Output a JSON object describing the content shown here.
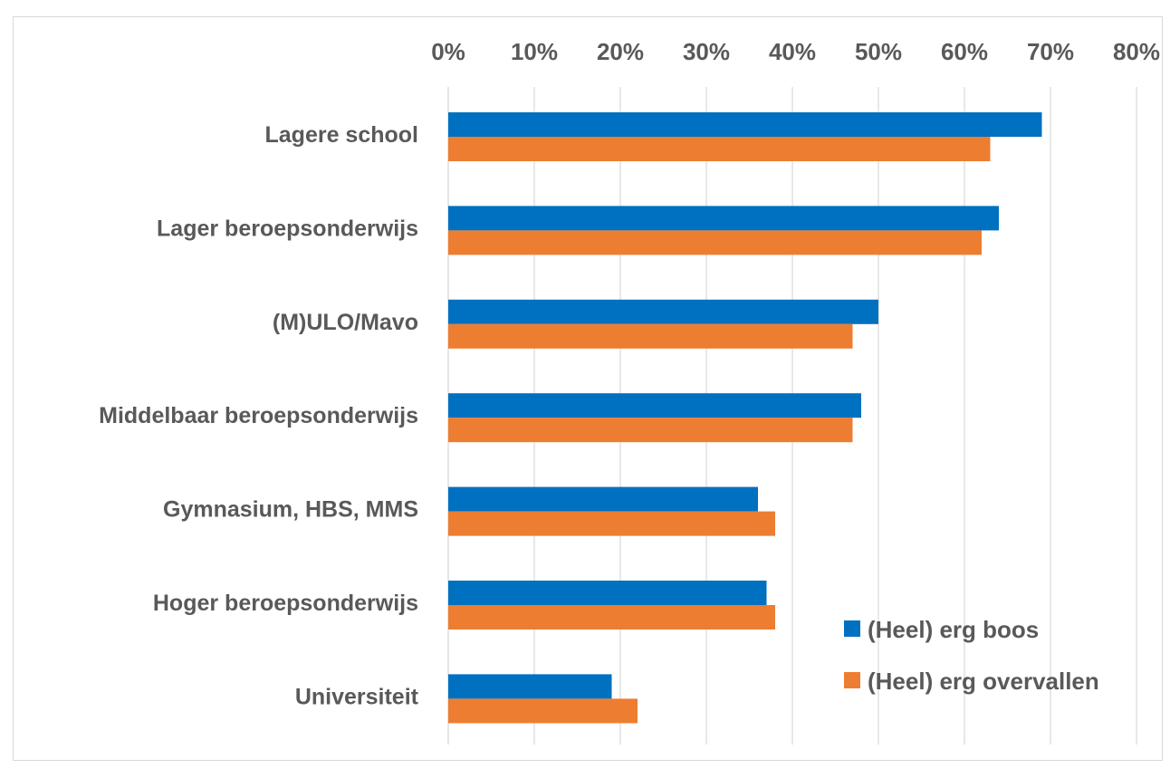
{
  "chart_data": {
    "type": "bar",
    "orientation": "horizontal",
    "title": "",
    "xlabel": "",
    "ylabel": "",
    "categories": [
      "Lagere school",
      "Lager beroepsonderwijs",
      "(M)ULO/Mavo",
      "Middelbaar beroepsonderwijs",
      "Gymnasium, HBS, MMS",
      "Hoger beroepsonderwijs",
      "Universiteit"
    ],
    "series": [
      {
        "name": "(Heel) erg boos",
        "color": "#0070C0",
        "values": [
          69,
          64,
          50,
          48,
          36,
          37,
          19
        ]
      },
      {
        "name": "(Heel) erg overvallen",
        "color": "#ED7D31",
        "values": [
          63,
          62,
          47,
          47,
          38,
          38,
          22
        ]
      }
    ],
    "xlim": [
      0,
      80
    ],
    "ticks": [
      0,
      10,
      20,
      30,
      40,
      50,
      60,
      70,
      80
    ],
    "tick_labels": [
      "0%",
      "10%",
      "20%",
      "30%",
      "40%",
      "50%",
      "60%",
      "70%",
      "80%"
    ],
    "axis_position": "top",
    "grid": true,
    "legend_position": "bottom-right"
  }
}
